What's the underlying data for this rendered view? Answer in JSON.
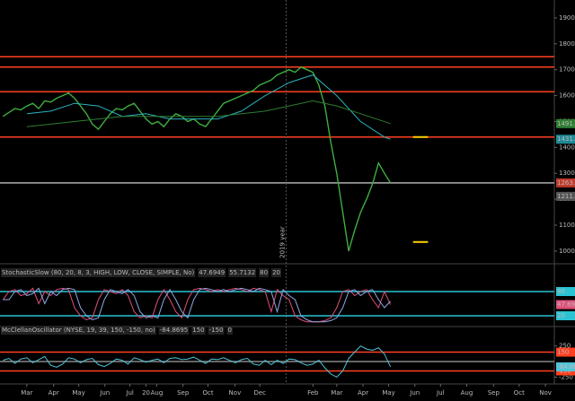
{
  "chart_data": [
    {
      "type": "line",
      "xlim": [
        -4.5,
        88.5
      ],
      "ylim": [
        958,
        1969
      ],
      "yticks": [
        1000,
        1100,
        1200,
        1300,
        1400,
        1500,
        1600,
        1700,
        1800,
        1900
      ],
      "x": [
        -4,
        -3,
        -2,
        -1,
        0,
        1,
        2,
        3,
        4,
        5,
        6,
        7,
        8,
        9,
        10,
        11,
        12,
        13,
        14,
        15,
        16,
        17,
        18,
        19,
        20,
        21,
        22,
        23,
        24,
        25,
        26,
        27,
        28,
        29,
        30,
        31,
        32,
        33,
        34,
        35,
        36,
        37,
        38,
        39,
        40,
        41,
        42,
        43,
        44,
        45,
        46,
        47,
        48,
        49,
        50,
        51,
        52,
        53,
        54,
        55,
        56,
        57,
        58,
        59,
        60,
        61
      ],
      "series": [
        {
          "color": "#3fae3f",
          "values": [
            1520,
            1535,
            1550,
            1545,
            1560,
            1570,
            1550,
            1580,
            1575,
            1590,
            1600,
            1610,
            1590,
            1560,
            1530,
            1490,
            1470,
            1500,
            1530,
            1550,
            1545,
            1560,
            1570,
            1540,
            1510,
            1490,
            1500,
            1480,
            1510,
            1530,
            1520,
            1500,
            1510,
            1490,
            1480,
            1510,
            1540,
            1570,
            1580,
            1590,
            1600,
            1610,
            1620,
            1640,
            1650,
            1660,
            1680,
            1690,
            1700,
            1690,
            1710,
            1700,
            1690,
            1640,
            1560,
            1420,
            1300,
            1150,
            1000,
            1080,
            1150,
            1200,
            1260,
            1340,
            1300,
            1263
          ]
        },
        {
          "color": "#2bb3c0",
          "x": [
            0,
            4,
            8,
            12,
            16,
            20,
            24,
            28,
            32,
            36,
            40,
            44,
            48,
            52,
            56,
            60,
            61
          ],
          "values": [
            1530,
            1540,
            1570,
            1560,
            1520,
            1530,
            1510,
            1510,
            1510,
            1540,
            1600,
            1650,
            1680,
            1600,
            1500,
            1440,
            1431.54
          ]
        },
        {
          "color": "#2e7d32",
          "x": [
            0,
            8,
            16,
            24,
            32,
            40,
            48,
            52,
            56,
            61
          ],
          "values": [
            1480,
            1500,
            1520,
            1520,
            1520,
            1540,
            1580,
            1560,
            1530,
            1491.78
          ]
        }
      ],
      "levels": [
        {
          "value": 1750,
          "color": "#ff4020"
        },
        {
          "value": 1710,
          "color": "#ff4020"
        },
        {
          "value": 1615,
          "color": "#ff4020"
        },
        {
          "value": 1440,
          "color": "#ff4020"
        },
        {
          "value": 1263.24,
          "color": "#b0b0b0"
        }
      ],
      "markers": [
        {
          "x": [
            64.8,
            67.3
          ],
          "value": 1440,
          "color": "#ffd400"
        },
        {
          "x": [
            64.8,
            67.3
          ],
          "value": 1035,
          "color": "#ffd400"
        }
      ],
      "price_labels": [
        {
          "value": 1491.78,
          "color": "#2e7d32"
        },
        {
          "value": 1431.54,
          "color": "#1f8a96"
        },
        {
          "value": 1263.24,
          "color": "#c0392b"
        },
        {
          "value": 1211.21,
          "color": "#555555"
        }
      ],
      "annotation": {
        "text": "2019 year",
        "x": 43.5
      }
    },
    {
      "type": "line",
      "title": "StochasticSlow (80, 20, 8, 3, HIGH, LOW, CLOSE, SIMPLE, No)",
      "xlim": [
        -4.5,
        88.5
      ],
      "ylim": [
        0,
        100
      ],
      "x": [
        -4,
        -3,
        -2,
        -1,
        0,
        1,
        2,
        3,
        4,
        5,
        6,
        7,
        8,
        9,
        10,
        11,
        12,
        13,
        14,
        15,
        16,
        17,
        18,
        19,
        20,
        21,
        22,
        23,
        24,
        25,
        26,
        27,
        28,
        29,
        30,
        31,
        32,
        33,
        34,
        35,
        36,
        37,
        38,
        39,
        40,
        41,
        42,
        43,
        44,
        45,
        46,
        47,
        48,
        49,
        50,
        51,
        52,
        53,
        54,
        55,
        56,
        57,
        58,
        59,
        60,
        61
      ],
      "series": [
        {
          "color": "#e0507a",
          "values": [
            60,
            80,
            85,
            70,
            75,
            88,
            50,
            80,
            70,
            85,
            88,
            85,
            40,
            20,
            10,
            15,
            60,
            85,
            80,
            75,
            85,
            70,
            30,
            15,
            20,
            15,
            60,
            85,
            60,
            30,
            15,
            60,
            85,
            88,
            85,
            80,
            85,
            80,
            85,
            88,
            85,
            80,
            88,
            85,
            80,
            30,
            85,
            70,
            60,
            20,
            10,
            5,
            5,
            5,
            8,
            15,
            40,
            80,
            85,
            70,
            80,
            85,
            60,
            40,
            80,
            47.6949
          ]
        },
        {
          "color": "#8fa8e8",
          "values": [
            60,
            60,
            80,
            85,
            70,
            75,
            88,
            50,
            80,
            70,
            85,
            88,
            85,
            40,
            20,
            10,
            15,
            60,
            85,
            80,
            75,
            85,
            70,
            30,
            15,
            20,
            15,
            60,
            85,
            60,
            30,
            15,
            60,
            85,
            88,
            85,
            80,
            85,
            80,
            85,
            88,
            85,
            80,
            88,
            85,
            80,
            30,
            85,
            70,
            60,
            20,
            10,
            5,
            5,
            5,
            8,
            15,
            40,
            80,
            85,
            70,
            80,
            85,
            60,
            40,
            55.7132
          ]
        }
      ],
      "levels": [
        {
          "value": 80,
          "color": "#2bc3d3"
        },
        {
          "value": 20,
          "color": "#2bc3d3"
        }
      ]
    },
    {
      "type": "line",
      "title": "McClellanOscillator (NYSE, 19, 39, 150, -150, no)",
      "xlim": [
        -4.5,
        88.5
      ],
      "ylim": [
        -330,
        330
      ],
      "yticks": [
        250,
        -250
      ],
      "xticks": [
        {
          "value": 0,
          "label": "Mar"
        },
        {
          "value": 4.5,
          "label": "Apr"
        },
        {
          "value": 8.7,
          "label": "May"
        },
        {
          "value": 13.1,
          "label": "Jun"
        },
        {
          "value": 17.3,
          "label": "Jul"
        },
        {
          "value": 21.8,
          "label": "Aug"
        },
        {
          "value": 26.2,
          "label": "Sep"
        },
        {
          "value": 30.4,
          "label": "Oct"
        },
        {
          "value": 34.9,
          "label": "Nov"
        },
        {
          "value": 39.1,
          "label": "Dec"
        },
        20,
        {
          "value": 48,
          "label": "Feb"
        },
        {
          "value": 52,
          "label": "Mar"
        },
        {
          "value": 56.4,
          "label": "Apr"
        },
        {
          "value": 60.7,
          "label": "May"
        },
        {
          "value": 65.1,
          "label": "Jun"
        },
        {
          "value": 69.4,
          "label": "Jul"
        },
        {
          "value": 73.8,
          "label": "Aug"
        },
        {
          "value": 78.3,
          "label": "Sep"
        },
        {
          "value": 82.6,
          "label": "Oct"
        },
        {
          "value": 87,
          "label": "Nov"
        }
      ],
      "x": [
        -4,
        -3,
        -2,
        -1,
        0,
        1,
        2,
        3,
        4,
        5,
        6,
        7,
        8,
        9,
        10,
        11,
        12,
        13,
        14,
        15,
        16,
        17,
        18,
        19,
        20,
        21,
        22,
        23,
        24,
        25,
        26,
        27,
        28,
        29,
        30,
        31,
        32,
        33,
        34,
        35,
        36,
        37,
        38,
        39,
        40,
        41,
        42,
        43,
        44,
        45,
        46,
        47,
        48,
        49,
        50,
        51,
        52,
        53,
        54,
        55,
        56,
        57,
        58,
        59,
        60,
        61
      ],
      "series": [
        {
          "color": "#4fc3d9",
          "values": [
            20,
            50,
            -30,
            40,
            60,
            -20,
            30,
            80,
            -60,
            -90,
            -40,
            60,
            40,
            -20,
            30,
            50,
            -50,
            -80,
            -30,
            40,
            20,
            -40,
            60,
            30,
            -10,
            20,
            40,
            -20,
            50,
            60,
            30,
            40,
            70,
            20,
            -30,
            40,
            30,
            60,
            20,
            -20,
            30,
            50,
            -40,
            -60,
            20,
            -50,
            20,
            -30,
            40,
            30,
            -20,
            -60,
            -40,
            20,
            -100,
            -200,
            -250,
            -150,
            50,
            150,
            250,
            200,
            180,
            220,
            120,
            -84.8695
          ]
        }
      ],
      "levels": [
        {
          "value": 150,
          "color": "#ff4020"
        },
        {
          "value": -150,
          "color": "#ff4020"
        },
        {
          "value": 0,
          "color": "#888888"
        }
      ]
    }
  ]
}
